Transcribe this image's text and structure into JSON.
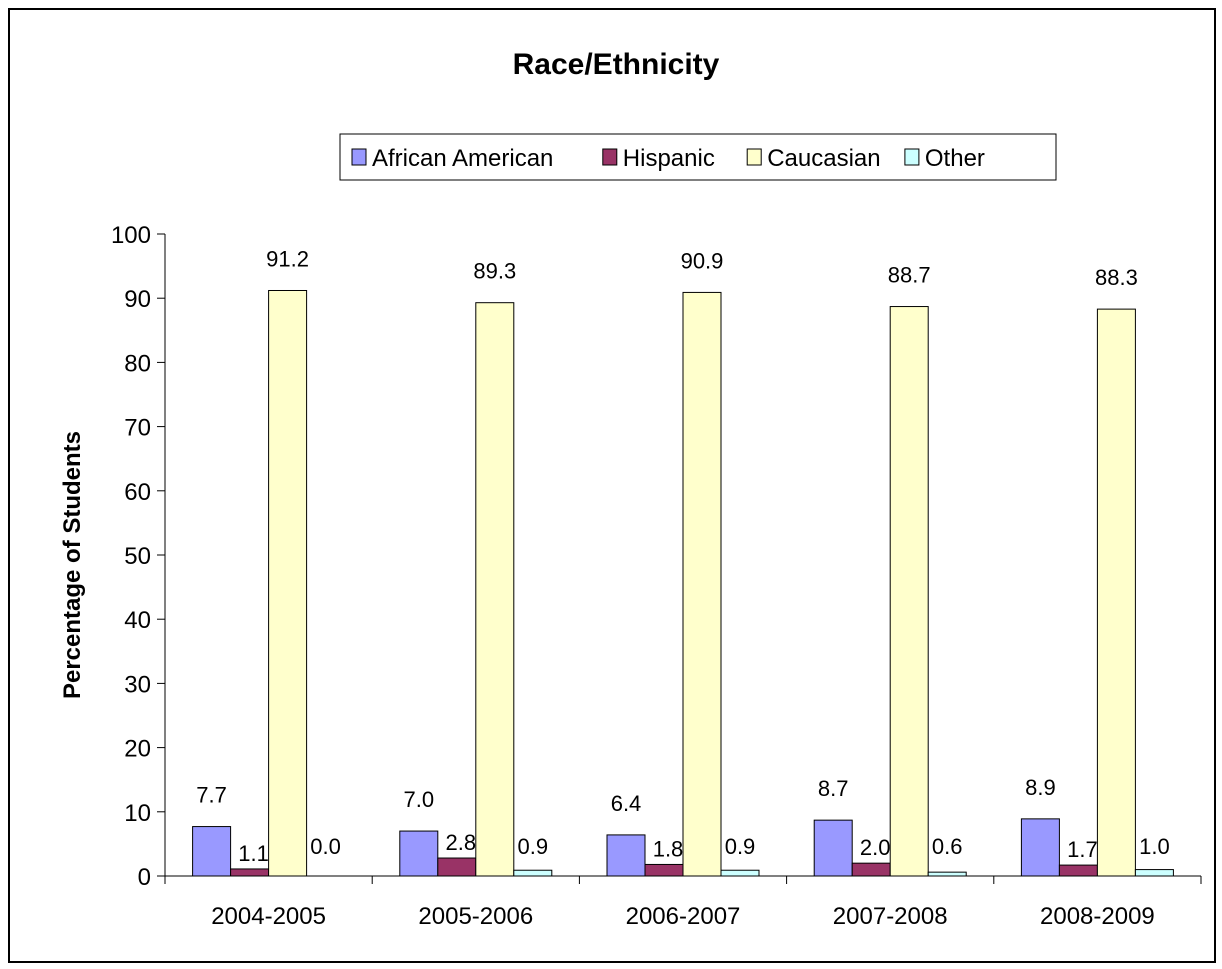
{
  "chart_data": {
    "type": "bar",
    "title": "Race/Ethnicity",
    "xlabel": "",
    "ylabel": "Percentage of Students",
    "ylim": [
      0,
      100
    ],
    "yticks": [
      "0",
      "10",
      "20",
      "30",
      "40",
      "50",
      "60",
      "70",
      "80",
      "90",
      "100"
    ],
    "grid": false,
    "legend_position": "top",
    "categories": [
      "2004-2005",
      "2005-2006",
      "2006-2007",
      "2007-2008",
      "2008-2009"
    ],
    "series": [
      {
        "name": "African American",
        "color": "#9999ff",
        "values": [
          7.7,
          7.0,
          6.4,
          8.7,
          8.9
        ],
        "labels": [
          "7.7",
          "7.0",
          "6.4",
          "8.7",
          "8.9"
        ]
      },
      {
        "name": "Hispanic",
        "color": "#993366",
        "values": [
          1.1,
          2.8,
          1.8,
          2.0,
          1.7
        ],
        "labels": [
          "1.1",
          "2.8",
          "1.8",
          "2.0",
          "1.7"
        ]
      },
      {
        "name": "Caucasian",
        "color": "#ffffcc",
        "values": [
          91.2,
          89.3,
          90.9,
          88.7,
          88.3
        ],
        "labels": [
          "91.2",
          "89.3",
          "90.9",
          "88.7",
          "88.3"
        ]
      },
      {
        "name": "Other",
        "color": "#ccffff",
        "values": [
          0.0,
          0.9,
          0.9,
          0.6,
          1.0
        ],
        "labels": [
          "0.0",
          "0.9",
          "0.9",
          "0.6",
          "1.0"
        ]
      }
    ]
  }
}
